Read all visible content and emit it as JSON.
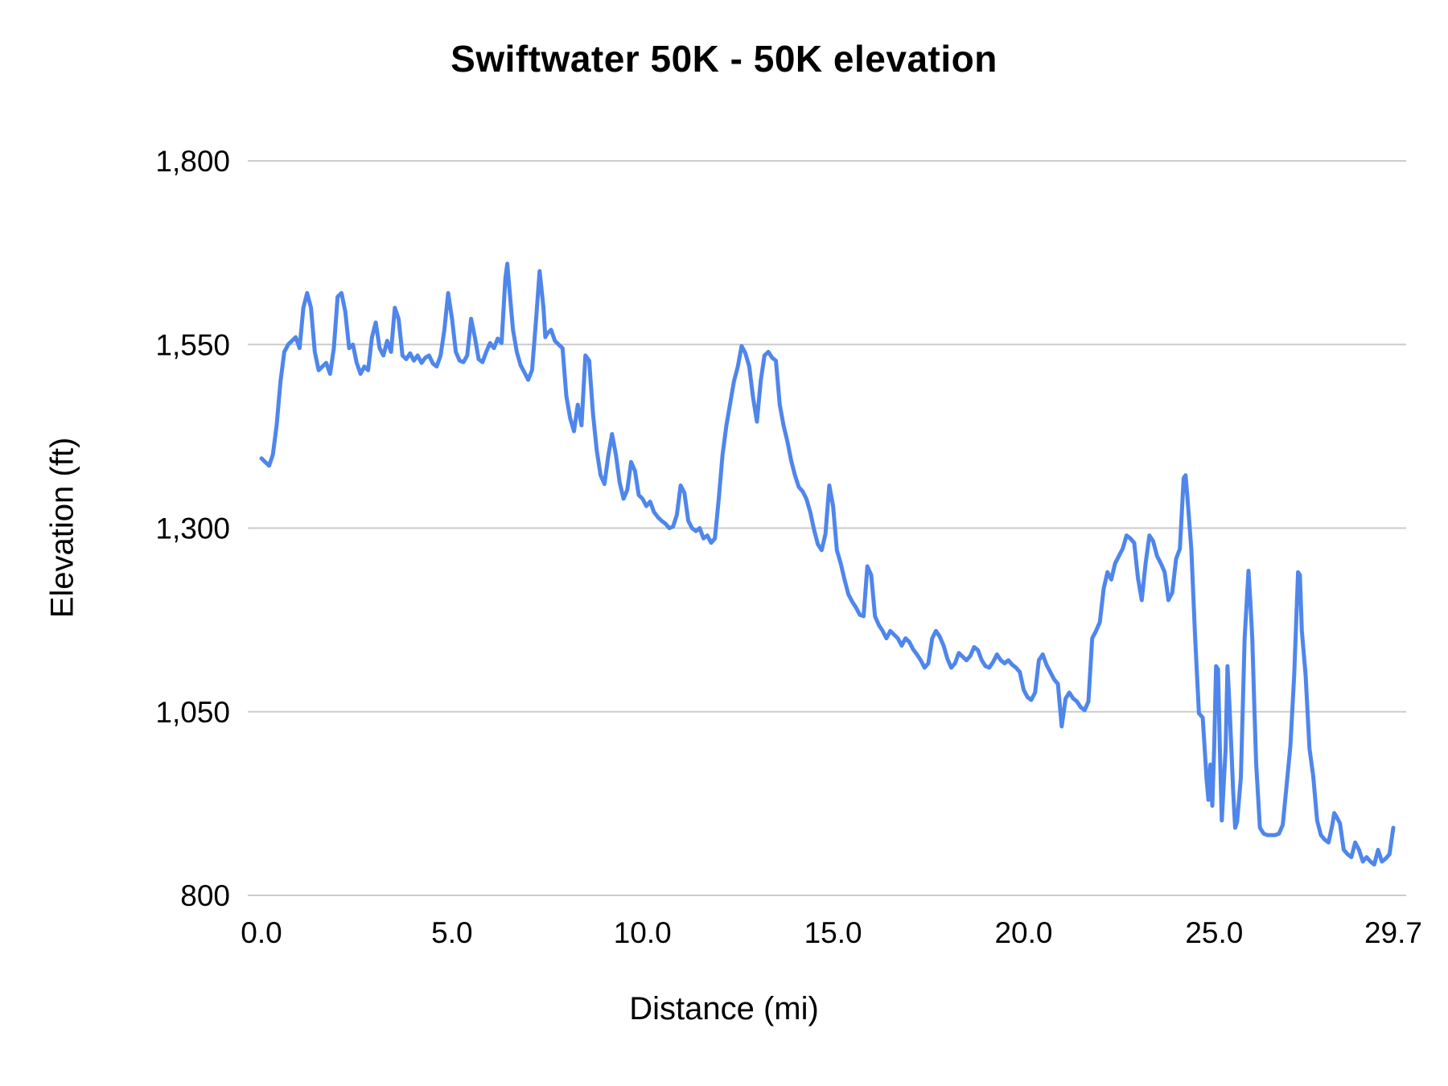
{
  "chart_data": {
    "type": "line",
    "title": "Swiftwater 50K - 50K elevation",
    "xlabel": "Distance (mi)",
    "ylabel": "Elevation (ft)",
    "xlim": [
      0,
      29.7
    ],
    "ylim": [
      800,
      1800
    ],
    "grid": "horizontal",
    "legend": "none",
    "colors": {
      "line": "#4f86ec",
      "gridline": "#cccccc",
      "text": "#000000"
    },
    "x_ticks": [
      {
        "value": 0,
        "label": "0.0"
      },
      {
        "value": 5,
        "label": "5.0"
      },
      {
        "value": 10,
        "label": "10.0"
      },
      {
        "value": 15,
        "label": "15.0"
      },
      {
        "value": 20,
        "label": "20.0"
      },
      {
        "value": 25,
        "label": "25.0"
      },
      {
        "value": 29.7,
        "label": "29.7"
      }
    ],
    "y_ticks": [
      {
        "value": 800,
        "label": "800"
      },
      {
        "value": 1050,
        "label": "1,050"
      },
      {
        "value": 1300,
        "label": "1,300"
      },
      {
        "value": 1550,
        "label": "1,550"
      },
      {
        "value": 1800,
        "label": "1,800"
      }
    ],
    "points": [
      [
        0.0,
        1395
      ],
      [
        0.1,
        1390
      ],
      [
        0.2,
        1385
      ],
      [
        0.3,
        1400
      ],
      [
        0.4,
        1440
      ],
      [
        0.5,
        1500
      ],
      [
        0.6,
        1540
      ],
      [
        0.7,
        1550
      ],
      [
        0.8,
        1555
      ],
      [
        0.9,
        1560
      ],
      [
        1.0,
        1545
      ],
      [
        1.1,
        1600
      ],
      [
        1.2,
        1620
      ],
      [
        1.3,
        1600
      ],
      [
        1.4,
        1540
      ],
      [
        1.5,
        1515
      ],
      [
        1.6,
        1520
      ],
      [
        1.7,
        1525
      ],
      [
        1.8,
        1510
      ],
      [
        1.9,
        1545
      ],
      [
        2.0,
        1615
      ],
      [
        2.1,
        1620
      ],
      [
        2.2,
        1595
      ],
      [
        2.3,
        1545
      ],
      [
        2.4,
        1550
      ],
      [
        2.5,
        1525
      ],
      [
        2.6,
        1510
      ],
      [
        2.7,
        1520
      ],
      [
        2.8,
        1515
      ],
      [
        2.9,
        1560
      ],
      [
        3.0,
        1580
      ],
      [
        3.1,
        1545
      ],
      [
        3.2,
        1535
      ],
      [
        3.3,
        1555
      ],
      [
        3.4,
        1540
      ],
      [
        3.5,
        1600
      ],
      [
        3.6,
        1585
      ],
      [
        3.7,
        1535
      ],
      [
        3.8,
        1530
      ],
      [
        3.9,
        1538
      ],
      [
        4.0,
        1528
      ],
      [
        4.1,
        1535
      ],
      [
        4.2,
        1525
      ],
      [
        4.3,
        1532
      ],
      [
        4.4,
        1535
      ],
      [
        4.5,
        1524
      ],
      [
        4.6,
        1520
      ],
      [
        4.7,
        1535
      ],
      [
        4.8,
        1570
      ],
      [
        4.9,
        1620
      ],
      [
        5.0,
        1585
      ],
      [
        5.1,
        1540
      ],
      [
        5.2,
        1528
      ],
      [
        5.3,
        1526
      ],
      [
        5.4,
        1535
      ],
      [
        5.5,
        1585
      ],
      [
        5.6,
        1560
      ],
      [
        5.7,
        1530
      ],
      [
        5.8,
        1526
      ],
      [
        5.9,
        1540
      ],
      [
        6.0,
        1552
      ],
      [
        6.1,
        1545
      ],
      [
        6.2,
        1558
      ],
      [
        6.3,
        1552
      ],
      [
        6.4,
        1640
      ],
      [
        6.45,
        1660
      ],
      [
        6.5,
        1630
      ],
      [
        6.6,
        1570
      ],
      [
        6.7,
        1540
      ],
      [
        6.8,
        1522
      ],
      [
        6.9,
        1512
      ],
      [
        7.0,
        1502
      ],
      [
        7.1,
        1515
      ],
      [
        7.2,
        1580
      ],
      [
        7.3,
        1650
      ],
      [
        7.4,
        1600
      ],
      [
        7.45,
        1560
      ],
      [
        7.5,
        1565
      ],
      [
        7.6,
        1570
      ],
      [
        7.7,
        1555
      ],
      [
        7.8,
        1550
      ],
      [
        7.9,
        1545
      ],
      [
        8.0,
        1480
      ],
      [
        8.1,
        1450
      ],
      [
        8.2,
        1432
      ],
      [
        8.3,
        1468
      ],
      [
        8.4,
        1440
      ],
      [
        8.5,
        1535
      ],
      [
        8.6,
        1528
      ],
      [
        8.7,
        1455
      ],
      [
        8.8,
        1405
      ],
      [
        8.9,
        1372
      ],
      [
        9.0,
        1360
      ],
      [
        9.1,
        1398
      ],
      [
        9.2,
        1428
      ],
      [
        9.3,
        1400
      ],
      [
        9.4,
        1362
      ],
      [
        9.5,
        1340
      ],
      [
        9.6,
        1352
      ],
      [
        9.7,
        1390
      ],
      [
        9.8,
        1378
      ],
      [
        9.9,
        1345
      ],
      [
        10.0,
        1340
      ],
      [
        10.1,
        1330
      ],
      [
        10.2,
        1336
      ],
      [
        10.3,
        1322
      ],
      [
        10.4,
        1315
      ],
      [
        10.5,
        1310
      ],
      [
        10.6,
        1306
      ],
      [
        10.7,
        1300
      ],
      [
        10.8,
        1302
      ],
      [
        10.9,
        1318
      ],
      [
        11.0,
        1358
      ],
      [
        11.1,
        1348
      ],
      [
        11.2,
        1310
      ],
      [
        11.3,
        1300
      ],
      [
        11.4,
        1296
      ],
      [
        11.5,
        1300
      ],
      [
        11.6,
        1286
      ],
      [
        11.7,
        1290
      ],
      [
        11.8,
        1280
      ],
      [
        11.9,
        1286
      ],
      [
        12.0,
        1340
      ],
      [
        12.1,
        1400
      ],
      [
        12.2,
        1440
      ],
      [
        12.3,
        1470
      ],
      [
        12.4,
        1500
      ],
      [
        12.5,
        1520
      ],
      [
        12.6,
        1548
      ],
      [
        12.7,
        1538
      ],
      [
        12.8,
        1520
      ],
      [
        12.9,
        1478
      ],
      [
        13.0,
        1445
      ],
      [
        13.1,
        1500
      ],
      [
        13.2,
        1535
      ],
      [
        13.3,
        1540
      ],
      [
        13.4,
        1532
      ],
      [
        13.5,
        1528
      ],
      [
        13.6,
        1468
      ],
      [
        13.7,
        1440
      ],
      [
        13.8,
        1418
      ],
      [
        13.9,
        1392
      ],
      [
        14.0,
        1372
      ],
      [
        14.1,
        1356
      ],
      [
        14.2,
        1350
      ],
      [
        14.3,
        1340
      ],
      [
        14.4,
        1322
      ],
      [
        14.5,
        1298
      ],
      [
        14.6,
        1278
      ],
      [
        14.7,
        1270
      ],
      [
        14.8,
        1292
      ],
      [
        14.9,
        1358
      ],
      [
        15.0,
        1330
      ],
      [
        15.1,
        1270
      ],
      [
        15.2,
        1252
      ],
      [
        15.3,
        1230
      ],
      [
        15.4,
        1210
      ],
      [
        15.5,
        1200
      ],
      [
        15.6,
        1192
      ],
      [
        15.7,
        1182
      ],
      [
        15.8,
        1180
      ],
      [
        15.9,
        1248
      ],
      [
        16.0,
        1236
      ],
      [
        16.1,
        1180
      ],
      [
        16.2,
        1168
      ],
      [
        16.3,
        1160
      ],
      [
        16.4,
        1150
      ],
      [
        16.5,
        1160
      ],
      [
        16.6,
        1155
      ],
      [
        16.7,
        1150
      ],
      [
        16.8,
        1140
      ],
      [
        16.9,
        1150
      ],
      [
        17.0,
        1145
      ],
      [
        17.1,
        1135
      ],
      [
        17.2,
        1128
      ],
      [
        17.3,
        1120
      ],
      [
        17.4,
        1110
      ],
      [
        17.5,
        1116
      ],
      [
        17.6,
        1150
      ],
      [
        17.7,
        1160
      ],
      [
        17.8,
        1152
      ],
      [
        17.9,
        1140
      ],
      [
        18.0,
        1122
      ],
      [
        18.1,
        1110
      ],
      [
        18.2,
        1116
      ],
      [
        18.3,
        1130
      ],
      [
        18.4,
        1125
      ],
      [
        18.5,
        1120
      ],
      [
        18.6,
        1126
      ],
      [
        18.7,
        1138
      ],
      [
        18.8,
        1134
      ],
      [
        18.9,
        1120
      ],
      [
        19.0,
        1112
      ],
      [
        19.1,
        1110
      ],
      [
        19.2,
        1118
      ],
      [
        19.3,
        1128
      ],
      [
        19.4,
        1120
      ],
      [
        19.5,
        1116
      ],
      [
        19.6,
        1120
      ],
      [
        19.7,
        1114
      ],
      [
        19.8,
        1110
      ],
      [
        19.9,
        1104
      ],
      [
        20.0,
        1080
      ],
      [
        20.1,
        1070
      ],
      [
        20.2,
        1066
      ],
      [
        20.3,
        1076
      ],
      [
        20.4,
        1120
      ],
      [
        20.5,
        1128
      ],
      [
        20.6,
        1114
      ],
      [
        20.7,
        1104
      ],
      [
        20.8,
        1094
      ],
      [
        20.9,
        1088
      ],
      [
        21.0,
        1030
      ],
      [
        21.1,
        1068
      ],
      [
        21.2,
        1076
      ],
      [
        21.3,
        1068
      ],
      [
        21.4,
        1064
      ],
      [
        21.5,
        1056
      ],
      [
        21.6,
        1052
      ],
      [
        21.7,
        1064
      ],
      [
        21.8,
        1150
      ],
      [
        21.9,
        1160
      ],
      [
        22.0,
        1172
      ],
      [
        22.1,
        1218
      ],
      [
        22.2,
        1240
      ],
      [
        22.3,
        1230
      ],
      [
        22.4,
        1252
      ],
      [
        22.5,
        1262
      ],
      [
        22.6,
        1272
      ],
      [
        22.7,
        1290
      ],
      [
        22.8,
        1286
      ],
      [
        22.9,
        1280
      ],
      [
        23.0,
        1232
      ],
      [
        23.1,
        1202
      ],
      [
        23.2,
        1252
      ],
      [
        23.3,
        1290
      ],
      [
        23.4,
        1282
      ],
      [
        23.5,
        1262
      ],
      [
        23.6,
        1252
      ],
      [
        23.7,
        1240
      ],
      [
        23.8,
        1202
      ],
      [
        23.9,
        1212
      ],
      [
        24.0,
        1258
      ],
      [
        24.1,
        1272
      ],
      [
        24.2,
        1368
      ],
      [
        24.25,
        1372
      ],
      [
        24.3,
        1340
      ],
      [
        24.4,
        1272
      ],
      [
        24.5,
        1150
      ],
      [
        24.6,
        1048
      ],
      [
        24.7,
        1042
      ],
      [
        24.75,
        1000
      ],
      [
        24.8,
        958
      ],
      [
        24.85,
        930
      ],
      [
        24.9,
        978
      ],
      [
        24.95,
        922
      ],
      [
        25.0,
        1000
      ],
      [
        25.05,
        1112
      ],
      [
        25.1,
        1108
      ],
      [
        25.15,
        1000
      ],
      [
        25.2,
        902
      ],
      [
        25.3,
        1000
      ],
      [
        25.35,
        1112
      ],
      [
        25.4,
        1060
      ],
      [
        25.45,
        1000
      ],
      [
        25.5,
        940
      ],
      [
        25.55,
        892
      ],
      [
        25.6,
        900
      ],
      [
        25.7,
        960
      ],
      [
        25.8,
        1150
      ],
      [
        25.9,
        1242
      ],
      [
        25.95,
        1200
      ],
      [
        26.0,
        1150
      ],
      [
        26.05,
        1062
      ],
      [
        26.1,
        980
      ],
      [
        26.2,
        892
      ],
      [
        26.3,
        884
      ],
      [
        26.4,
        882
      ],
      [
        26.5,
        882
      ],
      [
        26.6,
        882
      ],
      [
        26.7,
        884
      ],
      [
        26.8,
        896
      ],
      [
        26.9,
        950
      ],
      [
        27.0,
        1004
      ],
      [
        27.1,
        1100
      ],
      [
        27.2,
        1240
      ],
      [
        27.25,
        1236
      ],
      [
        27.3,
        1160
      ],
      [
        27.4,
        1100
      ],
      [
        27.5,
        1000
      ],
      [
        27.6,
        962
      ],
      [
        27.7,
        902
      ],
      [
        27.8,
        882
      ],
      [
        27.9,
        876
      ],
      [
        28.0,
        872
      ],
      [
        28.1,
        896
      ],
      [
        28.15,
        912
      ],
      [
        28.2,
        908
      ],
      [
        28.3,
        898
      ],
      [
        28.4,
        862
      ],
      [
        28.5,
        856
      ],
      [
        28.6,
        852
      ],
      [
        28.7,
        872
      ],
      [
        28.8,
        862
      ],
      [
        28.9,
        846
      ],
      [
        29.0,
        852
      ],
      [
        29.1,
        846
      ],
      [
        29.2,
        842
      ],
      [
        29.3,
        862
      ],
      [
        29.4,
        846
      ],
      [
        29.5,
        850
      ],
      [
        29.6,
        856
      ],
      [
        29.7,
        892
      ]
    ]
  }
}
